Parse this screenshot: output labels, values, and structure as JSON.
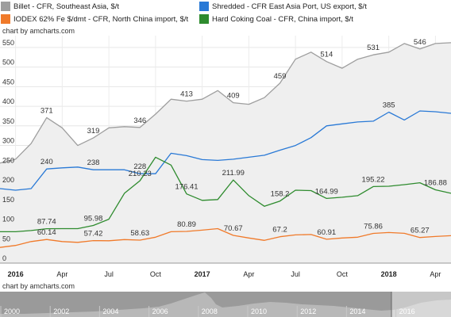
{
  "legend": [
    {
      "name": "Billet - CFR, Southeast Asia, $/t",
      "color": "#9e9e9e"
    },
    {
      "name": "Shredded - CFR East Asia Port, US export, $/t",
      "color": "#2979d6"
    },
    {
      "name": "IODEX 62% Fe $/dmt - CFR, North China import, $/t",
      "color": "#f07a2a"
    },
    {
      "name": "Hard Coking Coal - CFR, China import, $/t",
      "color": "#2e8b2e"
    }
  ],
  "credits": {
    "top": "chart by amcharts.com",
    "bottom": "chart by amcharts.com"
  },
  "chart_data": {
    "type": "line",
    "x_ticks": [
      "2016",
      "Apr",
      "Jul",
      "Oct",
      "2017",
      "Apr",
      "Jul",
      "Oct",
      "2018",
      "Apr"
    ],
    "x_ticks_bold": [
      "2016",
      "2017",
      "2018"
    ],
    "y_ticks": [
      0,
      50,
      100,
      150,
      200,
      250,
      300,
      350,
      400,
      450,
      500,
      550
    ],
    "ylim": [
      0,
      580
    ],
    "x_months": [
      "2015-12",
      "2016-01",
      "2016-02",
      "2016-03",
      "2016-04",
      "2016-05",
      "2016-06",
      "2016-07",
      "2016-08",
      "2016-09",
      "2016-10",
      "2016-11",
      "2016-12",
      "2017-01",
      "2017-02",
      "2017-03",
      "2017-04",
      "2017-05",
      "2017-06",
      "2017-07",
      "2017-08",
      "2017-09",
      "2017-10",
      "2017-11",
      "2017-12",
      "2018-01",
      "2018-02",
      "2018-03",
      "2018-04",
      "2018-05"
    ],
    "series": [
      {
        "name": "Billet - CFR, Southeast Asia, $/t",
        "color": "#9e9e9e",
        "fill": true,
        "values": [
          255,
          265,
          305,
          371,
          345,
          300,
          319,
          345,
          348,
          346,
          380,
          418,
          413,
          418,
          440,
          409,
          405,
          422,
          459,
          520,
          538,
          514,
          497,
          520,
          531,
          538,
          560,
          546,
          560,
          562
        ]
      },
      {
        "name": "Shredded - CFR East Asia Port, US export, $/t",
        "color": "#2979d6",
        "values": [
          190,
          186,
          190,
          240,
          243,
          245,
          238,
          238,
          238,
          228,
          228,
          280,
          274,
          264,
          262,
          265,
          270,
          275,
          288,
          300,
          320,
          350,
          355,
          360,
          362,
          385,
          365,
          388,
          386,
          382
        ]
      },
      {
        "name": "IODEX 62% Fe $/dmt - CFR, North China import, $/t",
        "color": "#f07a2a",
        "values": [
          40,
          45,
          55,
          60.14,
          55,
          53,
          57.42,
          57,
          60,
          58.63,
          66,
          80,
          80.89,
          84,
          88,
          70.67,
          64,
          58,
          67.2,
          72,
          73,
          60.91,
          64,
          66,
          75.86,
          78,
          76,
          65.27,
          68,
          70
        ]
      },
      {
        "name": "Hard Coking Coal - CFR, China import, $/t",
        "color": "#2e8b2e",
        "values": [
          80,
          80,
          83,
          87.74,
          88,
          88,
          95.98,
          112,
          178,
          210.23,
          270,
          250,
          176.41,
          160,
          162,
          211.99,
          172,
          145,
          158.2,
          186,
          185,
          164.99,
          168,
          172,
          195.22,
          196,
          200,
          205,
          186.88,
          178
        ]
      }
    ],
    "data_labels": [
      {
        "text": "371",
        "series": 0,
        "index": 3
      },
      {
        "text": "319",
        "series": 0,
        "index": 6
      },
      {
        "text": "346",
        "series": 0,
        "index": 9
      },
      {
        "text": "413",
        "series": 0,
        "index": 12
      },
      {
        "text": "409",
        "series": 0,
        "index": 15
      },
      {
        "text": "459",
        "series": 0,
        "index": 18
      },
      {
        "text": "514",
        "series": 0,
        "index": 21
      },
      {
        "text": "531",
        "series": 0,
        "index": 24
      },
      {
        "text": "546",
        "series": 0,
        "index": 27
      },
      {
        "text": "240",
        "series": 1,
        "index": 3
      },
      {
        "text": "238",
        "series": 1,
        "index": 6
      },
      {
        "text": "228",
        "series": 1,
        "index": 9
      },
      {
        "text": "385",
        "series": 1,
        "index": 25
      },
      {
        "text": "87.74",
        "series": 3,
        "index": 3
      },
      {
        "text": "95.98",
        "series": 3,
        "index": 6
      },
      {
        "text": "210.23",
        "series": 3,
        "index": 9
      },
      {
        "text": "176.41",
        "series": 3,
        "index": 12
      },
      {
        "text": "211.99",
        "series": 3,
        "index": 15
      },
      {
        "text": "158.2",
        "series": 3,
        "index": 18
      },
      {
        "text": "164.99",
        "series": 3,
        "index": 21
      },
      {
        "text": "195.22",
        "series": 3,
        "index": 24
      },
      {
        "text": "186.88",
        "series": 3,
        "index": 28
      },
      {
        "text": "60.14",
        "series": 2,
        "index": 3
      },
      {
        "text": "57.42",
        "series": 2,
        "index": 6
      },
      {
        "text": "58.63",
        "series": 2,
        "index": 9
      },
      {
        "text": "80.89",
        "series": 2,
        "index": 12
      },
      {
        "text": "70.67",
        "series": 2,
        "index": 15
      },
      {
        "text": "67.2",
        "series": 2,
        "index": 18
      },
      {
        "text": "60.91",
        "series": 2,
        "index": 21
      },
      {
        "text": "75.86",
        "series": 2,
        "index": 24
      },
      {
        "text": "65.27",
        "series": 2,
        "index": 27
      }
    ],
    "grid": true,
    "legend_position": "top"
  },
  "scrollbar": {
    "year_labels": [
      "2000",
      "2002",
      "2004",
      "2006",
      "2008",
      "2010",
      "2012",
      "2014",
      "2016"
    ],
    "selected_range": [
      "2015-12",
      "2018-05"
    ]
  }
}
